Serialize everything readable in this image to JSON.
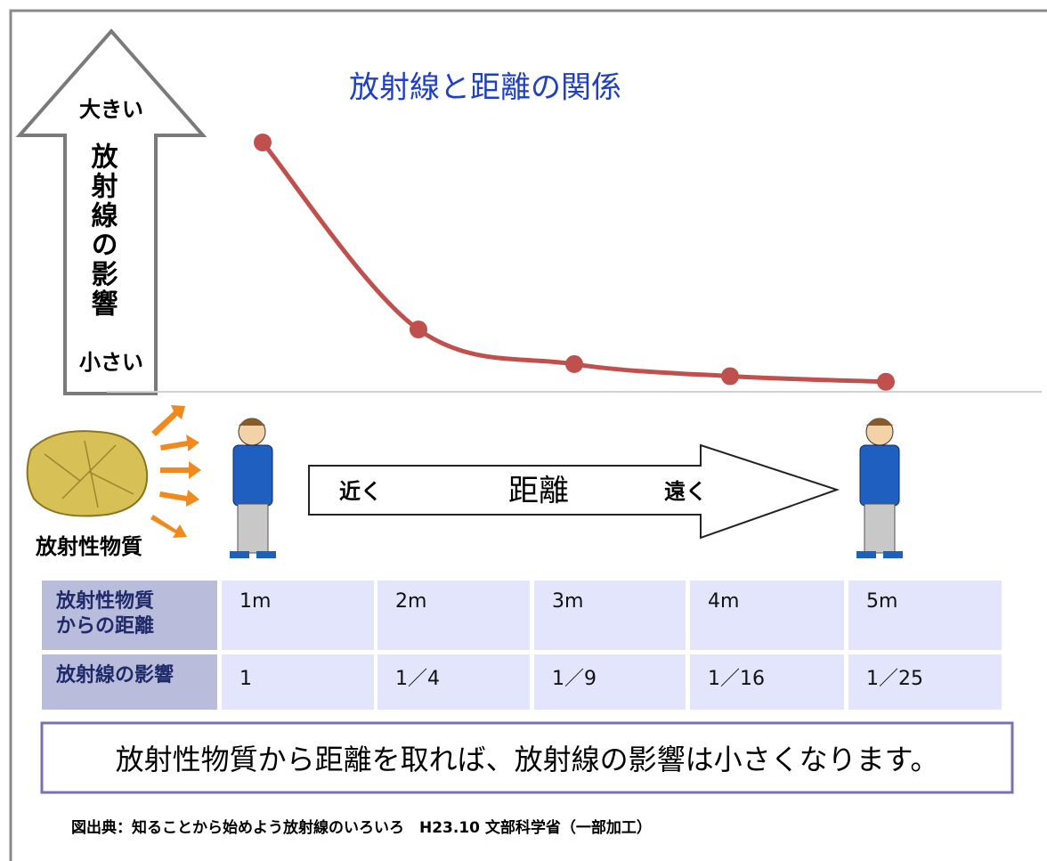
{
  "chart_data": {
    "type": "line",
    "title": "放射線と距離の関係",
    "x": [
      1,
      2,
      3,
      4,
      5
    ],
    "xlim": [
      0,
      6
    ],
    "ylim": [
      0,
      1
    ],
    "series": [
      {
        "color": "#c0504d",
        "values": [
          1,
          0.25,
          0.111,
          0.0625,
          0.04
        ]
      }
    ]
  },
  "y_arrow": {
    "top": "大きい",
    "label": "放射線の影響",
    "bottom": "小さい"
  },
  "diagram": {
    "source_label": "放射性物質",
    "distance_arrow": {
      "near": "近く",
      "label": "距離",
      "far": "遠く"
    }
  },
  "table": {
    "rows": [
      {
        "header": [
          "放射性物質",
          "からの距離"
        ],
        "cells": [
          "1m",
          "2m",
          "3m",
          "4m",
          "5m"
        ]
      },
      {
        "header": [
          "放射線の影響"
        ],
        "cells": [
          "1",
          "1／4",
          "1／9",
          "1／16",
          "1／25"
        ]
      }
    ]
  },
  "conclusion": "放射性物質から距離を取れば、放射線の影響は小さくなります。",
  "source": "図出典：知ることから始めよう放射線のいろいろ　H23.10 文部科学省（一部加工）"
}
